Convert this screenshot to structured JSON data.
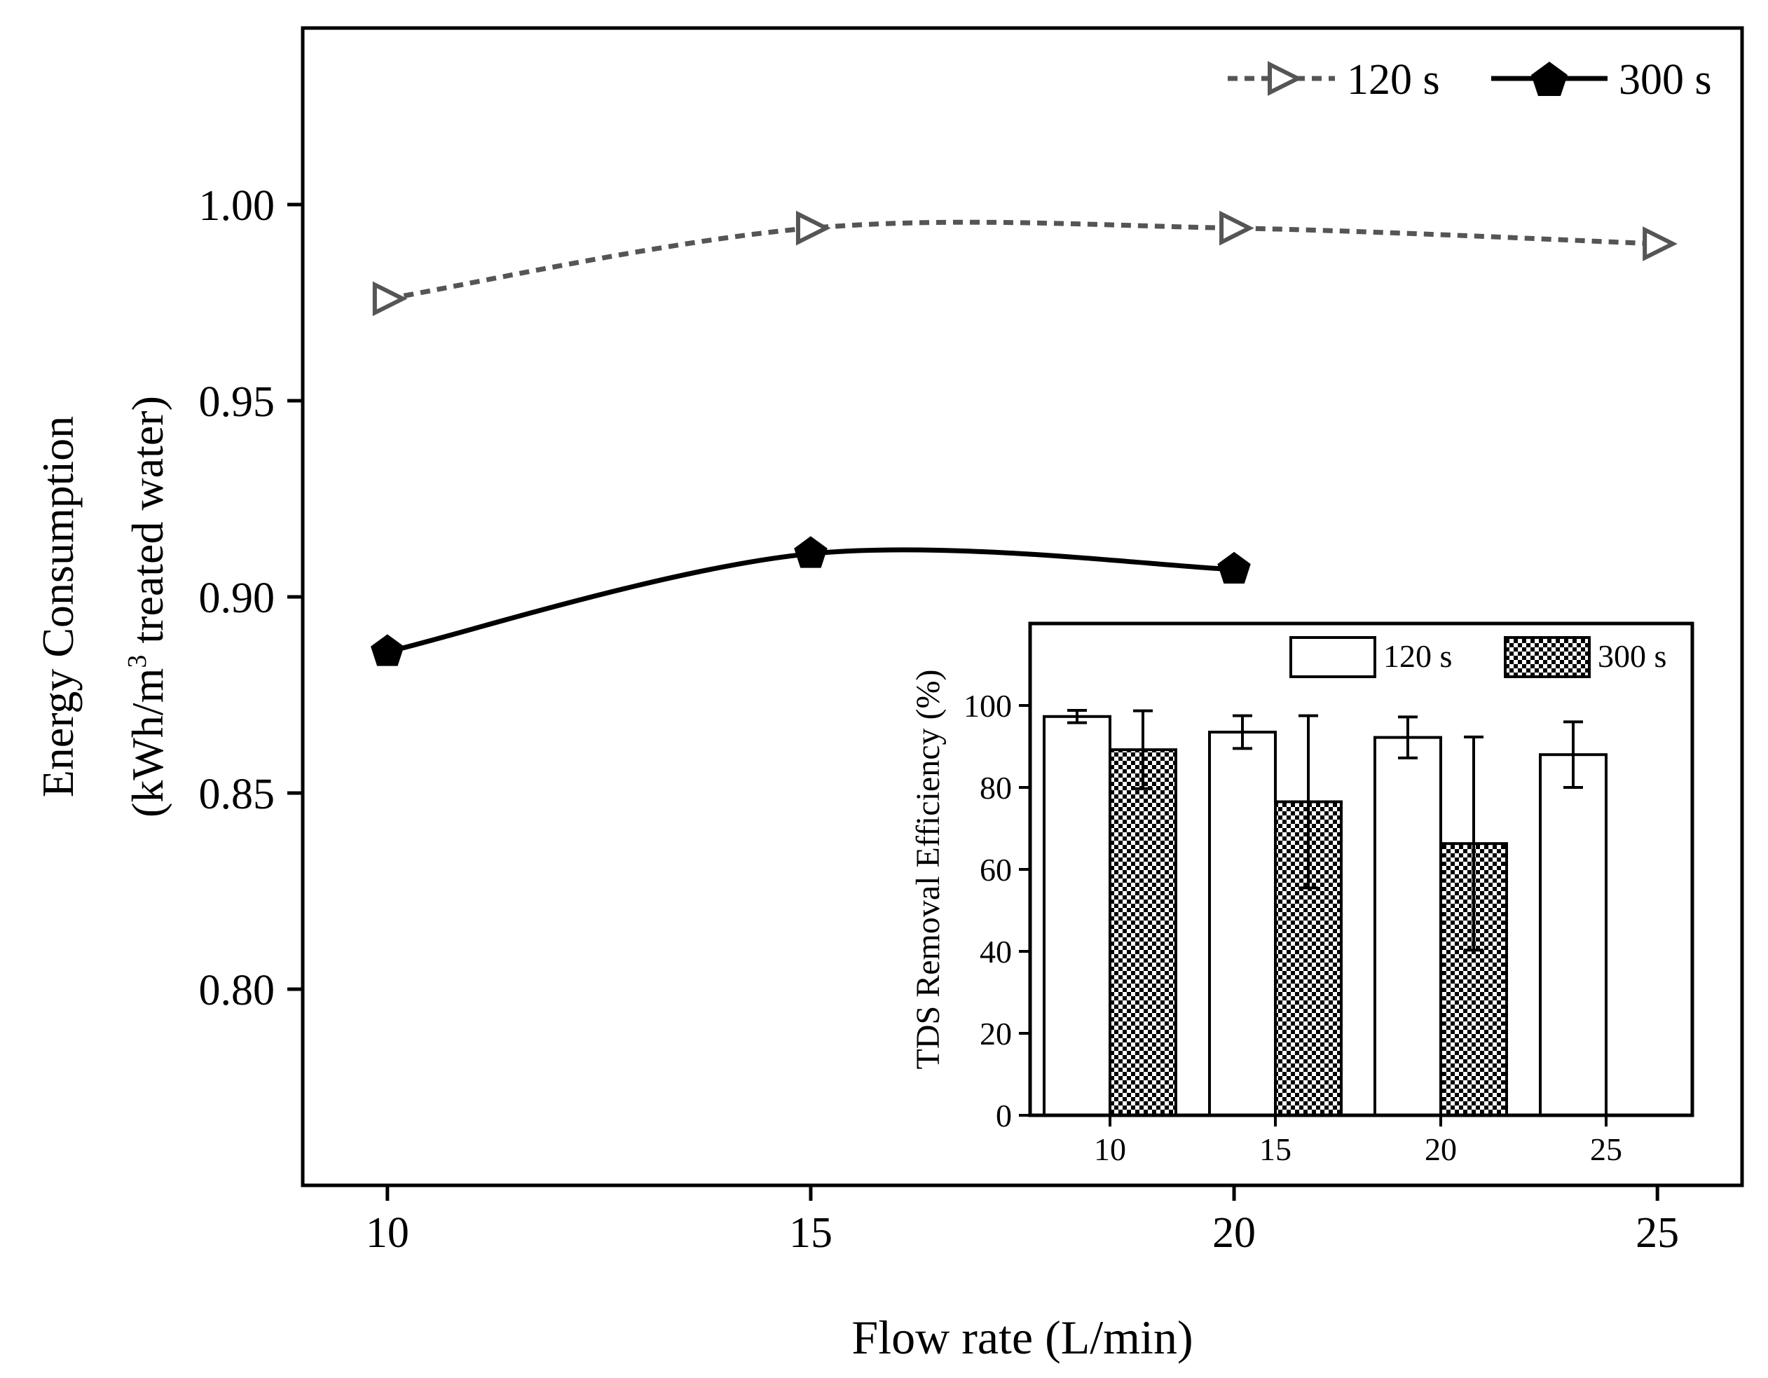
{
  "colors": {
    "series_120": "#555555",
    "series_300": "#000000",
    "bar_120_fill": "#ffffff",
    "bar_300_fill": "#000000",
    "axis": "#000000"
  },
  "icons": {
    "series_120_marker": "right-triangle-open",
    "series_300_marker": "filled-pentagon",
    "bar_300_pattern": "checkerboard"
  },
  "chart_data": [
    {
      "type": "line",
      "xlabel": "Flow rate (L/min)",
      "ylabel_line1": "Energy Consumption",
      "ylabel_line2_pre": "(kWh/m",
      "ylabel_line2_sup": "3",
      "ylabel_line2_post": " treated water)",
      "xlim": [
        9,
        26
      ],
      "ylim": [
        0.75,
        1.045
      ],
      "x_ticks": [
        10,
        15,
        20,
        25
      ],
      "x_tick_labels": [
        "10",
        "15",
        "20",
        "25"
      ],
      "y_ticks": [
        0.8,
        0.85,
        0.9,
        0.95,
        1.0
      ],
      "y_tick_labels": [
        "0.80",
        "0.85",
        "0.90",
        "0.95",
        "1.00"
      ],
      "legend_position": "top-right",
      "series": [
        {
          "name": "120 s",
          "line": "dashed",
          "marker": "right-triangle-open",
          "x": [
            10,
            15,
            20,
            25
          ],
          "values": [
            0.976,
            0.994,
            0.994,
            0.99
          ]
        },
        {
          "name": "300 s",
          "line": "solid",
          "marker": "filled-pentagon",
          "x": [
            10,
            15,
            20
          ],
          "values": [
            0.886,
            0.911,
            0.907
          ]
        }
      ]
    },
    {
      "type": "bar",
      "placement": "inset bottom-right",
      "ylabel": "TDS Removal Efficiency (%)",
      "categories": [
        "10",
        "15",
        "20",
        "25"
      ],
      "ylim": [
        0,
        120
      ],
      "y_ticks": [
        0,
        20,
        40,
        60,
        80,
        100
      ],
      "y_tick_labels": [
        "0",
        "20",
        "40",
        "60",
        "80",
        "100"
      ],
      "legend_position": "top-right",
      "series": [
        {
          "name": "120 s",
          "fill": "white",
          "values": [
            97.3,
            93.5,
            92.2,
            88
          ],
          "errors": [
            1.5,
            4,
            5,
            8
          ]
        },
        {
          "name": "300 s",
          "fill": "checkerboard",
          "values": [
            89.2,
            76.5,
            66.3,
            null
          ],
          "errors": [
            9.5,
            21,
            26,
            null
          ]
        }
      ]
    }
  ]
}
